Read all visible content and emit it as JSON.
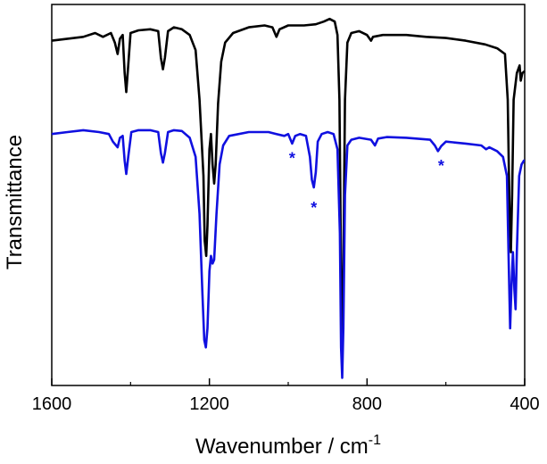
{
  "chart_data": {
    "type": "line",
    "xlabel": "Wavenumber / cm",
    "xlabel_superscript": "-1",
    "ylabel": "Transmittance",
    "xlim": [
      1600,
      400
    ],
    "ylim": [
      0,
      1
    ],
    "x_reversed": true,
    "x_ticks": [
      "1600",
      "1200",
      "800",
      "400"
    ],
    "y_ticks": [],
    "grid": false,
    "legend": "none",
    "series": [
      {
        "color": "#000000",
        "points": [
          [
            1600,
            0.905
          ],
          [
            1560,
            0.91
          ],
          [
            1520,
            0.915
          ],
          [
            1490,
            0.925
          ],
          [
            1470,
            0.915
          ],
          [
            1450,
            0.925
          ],
          [
            1440,
            0.9
          ],
          [
            1433,
            0.87
          ],
          [
            1427,
            0.91
          ],
          [
            1420,
            0.92
          ],
          [
            1415,
            0.82
          ],
          [
            1411,
            0.77
          ],
          [
            1406,
            0.84
          ],
          [
            1400,
            0.925
          ],
          [
            1380,
            0.932
          ],
          [
            1350,
            0.935
          ],
          [
            1330,
            0.93
          ],
          [
            1323,
            0.86
          ],
          [
            1318,
            0.83
          ],
          [
            1313,
            0.86
          ],
          [
            1305,
            0.93
          ],
          [
            1290,
            0.94
          ],
          [
            1270,
            0.935
          ],
          [
            1250,
            0.92
          ],
          [
            1235,
            0.88
          ],
          [
            1225,
            0.75
          ],
          [
            1215,
            0.55
          ],
          [
            1212,
            0.38
          ],
          [
            1208,
            0.34
          ],
          [
            1205,
            0.42
          ],
          [
            1200,
            0.62
          ],
          [
            1196,
            0.66
          ],
          [
            1192,
            0.58
          ],
          [
            1188,
            0.53
          ],
          [
            1184,
            0.58
          ],
          [
            1178,
            0.74
          ],
          [
            1170,
            0.85
          ],
          [
            1160,
            0.9
          ],
          [
            1140,
            0.925
          ],
          [
            1100,
            0.94
          ],
          [
            1060,
            0.945
          ],
          [
            1040,
            0.94
          ],
          [
            1030,
            0.915
          ],
          [
            1022,
            0.935
          ],
          [
            1000,
            0.945
          ],
          [
            960,
            0.945
          ],
          [
            930,
            0.948
          ],
          [
            910,
            0.955
          ],
          [
            895,
            0.962
          ],
          [
            882,
            0.955
          ],
          [
            875,
            0.92
          ],
          [
            870,
            0.75
          ],
          [
            866,
            0.3
          ],
          [
            863,
            0.1
          ],
          [
            860,
            0.3
          ],
          [
            856,
            0.75
          ],
          [
            850,
            0.9
          ],
          [
            840,
            0.925
          ],
          [
            820,
            0.93
          ],
          [
            800,
            0.92
          ],
          [
            790,
            0.905
          ],
          [
            785,
            0.915
          ],
          [
            760,
            0.92
          ],
          [
            700,
            0.92
          ],
          [
            650,
            0.915
          ],
          [
            600,
            0.912
          ],
          [
            550,
            0.905
          ],
          [
            500,
            0.895
          ],
          [
            470,
            0.885
          ],
          [
            450,
            0.87
          ],
          [
            443,
            0.75
          ],
          [
            438,
            0.43
          ],
          [
            435,
            0.35
          ],
          [
            432,
            0.5
          ],
          [
            428,
            0.75
          ],
          [
            420,
            0.82
          ],
          [
            413,
            0.84
          ],
          [
            410,
            0.8
          ],
          [
            406,
            0.82
          ],
          [
            400,
            0.825
          ]
        ]
      },
      {
        "color": "#1010e0",
        "points": [
          [
            1600,
            0.66
          ],
          [
            1560,
            0.665
          ],
          [
            1520,
            0.67
          ],
          [
            1480,
            0.665
          ],
          [
            1455,
            0.66
          ],
          [
            1445,
            0.64
          ],
          [
            1433,
            0.625
          ],
          [
            1427,
            0.65
          ],
          [
            1420,
            0.655
          ],
          [
            1415,
            0.59
          ],
          [
            1411,
            0.555
          ],
          [
            1406,
            0.6
          ],
          [
            1398,
            0.665
          ],
          [
            1380,
            0.67
          ],
          [
            1350,
            0.67
          ],
          [
            1330,
            0.665
          ],
          [
            1323,
            0.61
          ],
          [
            1318,
            0.585
          ],
          [
            1313,
            0.61
          ],
          [
            1305,
            0.665
          ],
          [
            1290,
            0.67
          ],
          [
            1270,
            0.668
          ],
          [
            1250,
            0.65
          ],
          [
            1235,
            0.6
          ],
          [
            1225,
            0.45
          ],
          [
            1218,
            0.25
          ],
          [
            1213,
            0.12
          ],
          [
            1209,
            0.1
          ],
          [
            1205,
            0.15
          ],
          [
            1200,
            0.3
          ],
          [
            1196,
            0.34
          ],
          [
            1192,
            0.32
          ],
          [
            1188,
            0.33
          ],
          [
            1182,
            0.45
          ],
          [
            1174,
            0.58
          ],
          [
            1165,
            0.63
          ],
          [
            1150,
            0.655
          ],
          [
            1100,
            0.665
          ],
          [
            1050,
            0.665
          ],
          [
            1030,
            0.66
          ],
          [
            1010,
            0.655
          ],
          [
            1000,
            0.66
          ],
          [
            990,
            0.635
          ],
          [
            982,
            0.655
          ],
          [
            970,
            0.66
          ],
          [
            955,
            0.655
          ],
          [
            945,
            0.6
          ],
          [
            940,
            0.54
          ],
          [
            935,
            0.52
          ],
          [
            930,
            0.56
          ],
          [
            925,
            0.64
          ],
          [
            915,
            0.66
          ],
          [
            900,
            0.665
          ],
          [
            885,
            0.66
          ],
          [
            875,
            0.62
          ],
          [
            869,
            0.4
          ],
          [
            866,
            0.1
          ],
          [
            863,
            0.02
          ],
          [
            860,
            0.15
          ],
          [
            856,
            0.5
          ],
          [
            850,
            0.63
          ],
          [
            840,
            0.645
          ],
          [
            820,
            0.65
          ],
          [
            790,
            0.645
          ],
          [
            780,
            0.63
          ],
          [
            772,
            0.648
          ],
          [
            750,
            0.652
          ],
          [
            700,
            0.65
          ],
          [
            640,
            0.645
          ],
          [
            628,
            0.63
          ],
          [
            620,
            0.615
          ],
          [
            612,
            0.628
          ],
          [
            600,
            0.64
          ],
          [
            550,
            0.635
          ],
          [
            510,
            0.63
          ],
          [
            498,
            0.62
          ],
          [
            490,
            0.625
          ],
          [
            470,
            0.615
          ],
          [
            455,
            0.6
          ],
          [
            445,
            0.55
          ],
          [
            440,
            0.3
          ],
          [
            437,
            0.15
          ],
          [
            434,
            0.25
          ],
          [
            430,
            0.35
          ],
          [
            426,
            0.25
          ],
          [
            423,
            0.2
          ],
          [
            420,
            0.35
          ],
          [
            414,
            0.55
          ],
          [
            408,
            0.58
          ],
          [
            402,
            0.59
          ],
          [
            400,
            0.59
          ]
        ]
      }
    ],
    "annotations": [
      {
        "text": "*",
        "x": 990,
        "y": 0.61,
        "color": "#1010e0"
      },
      {
        "text": "*",
        "x": 935,
        "y": 0.48,
        "color": "#1010e0"
      },
      {
        "text": "*",
        "x": 612,
        "y": 0.59,
        "color": "#1010e0"
      }
    ]
  }
}
